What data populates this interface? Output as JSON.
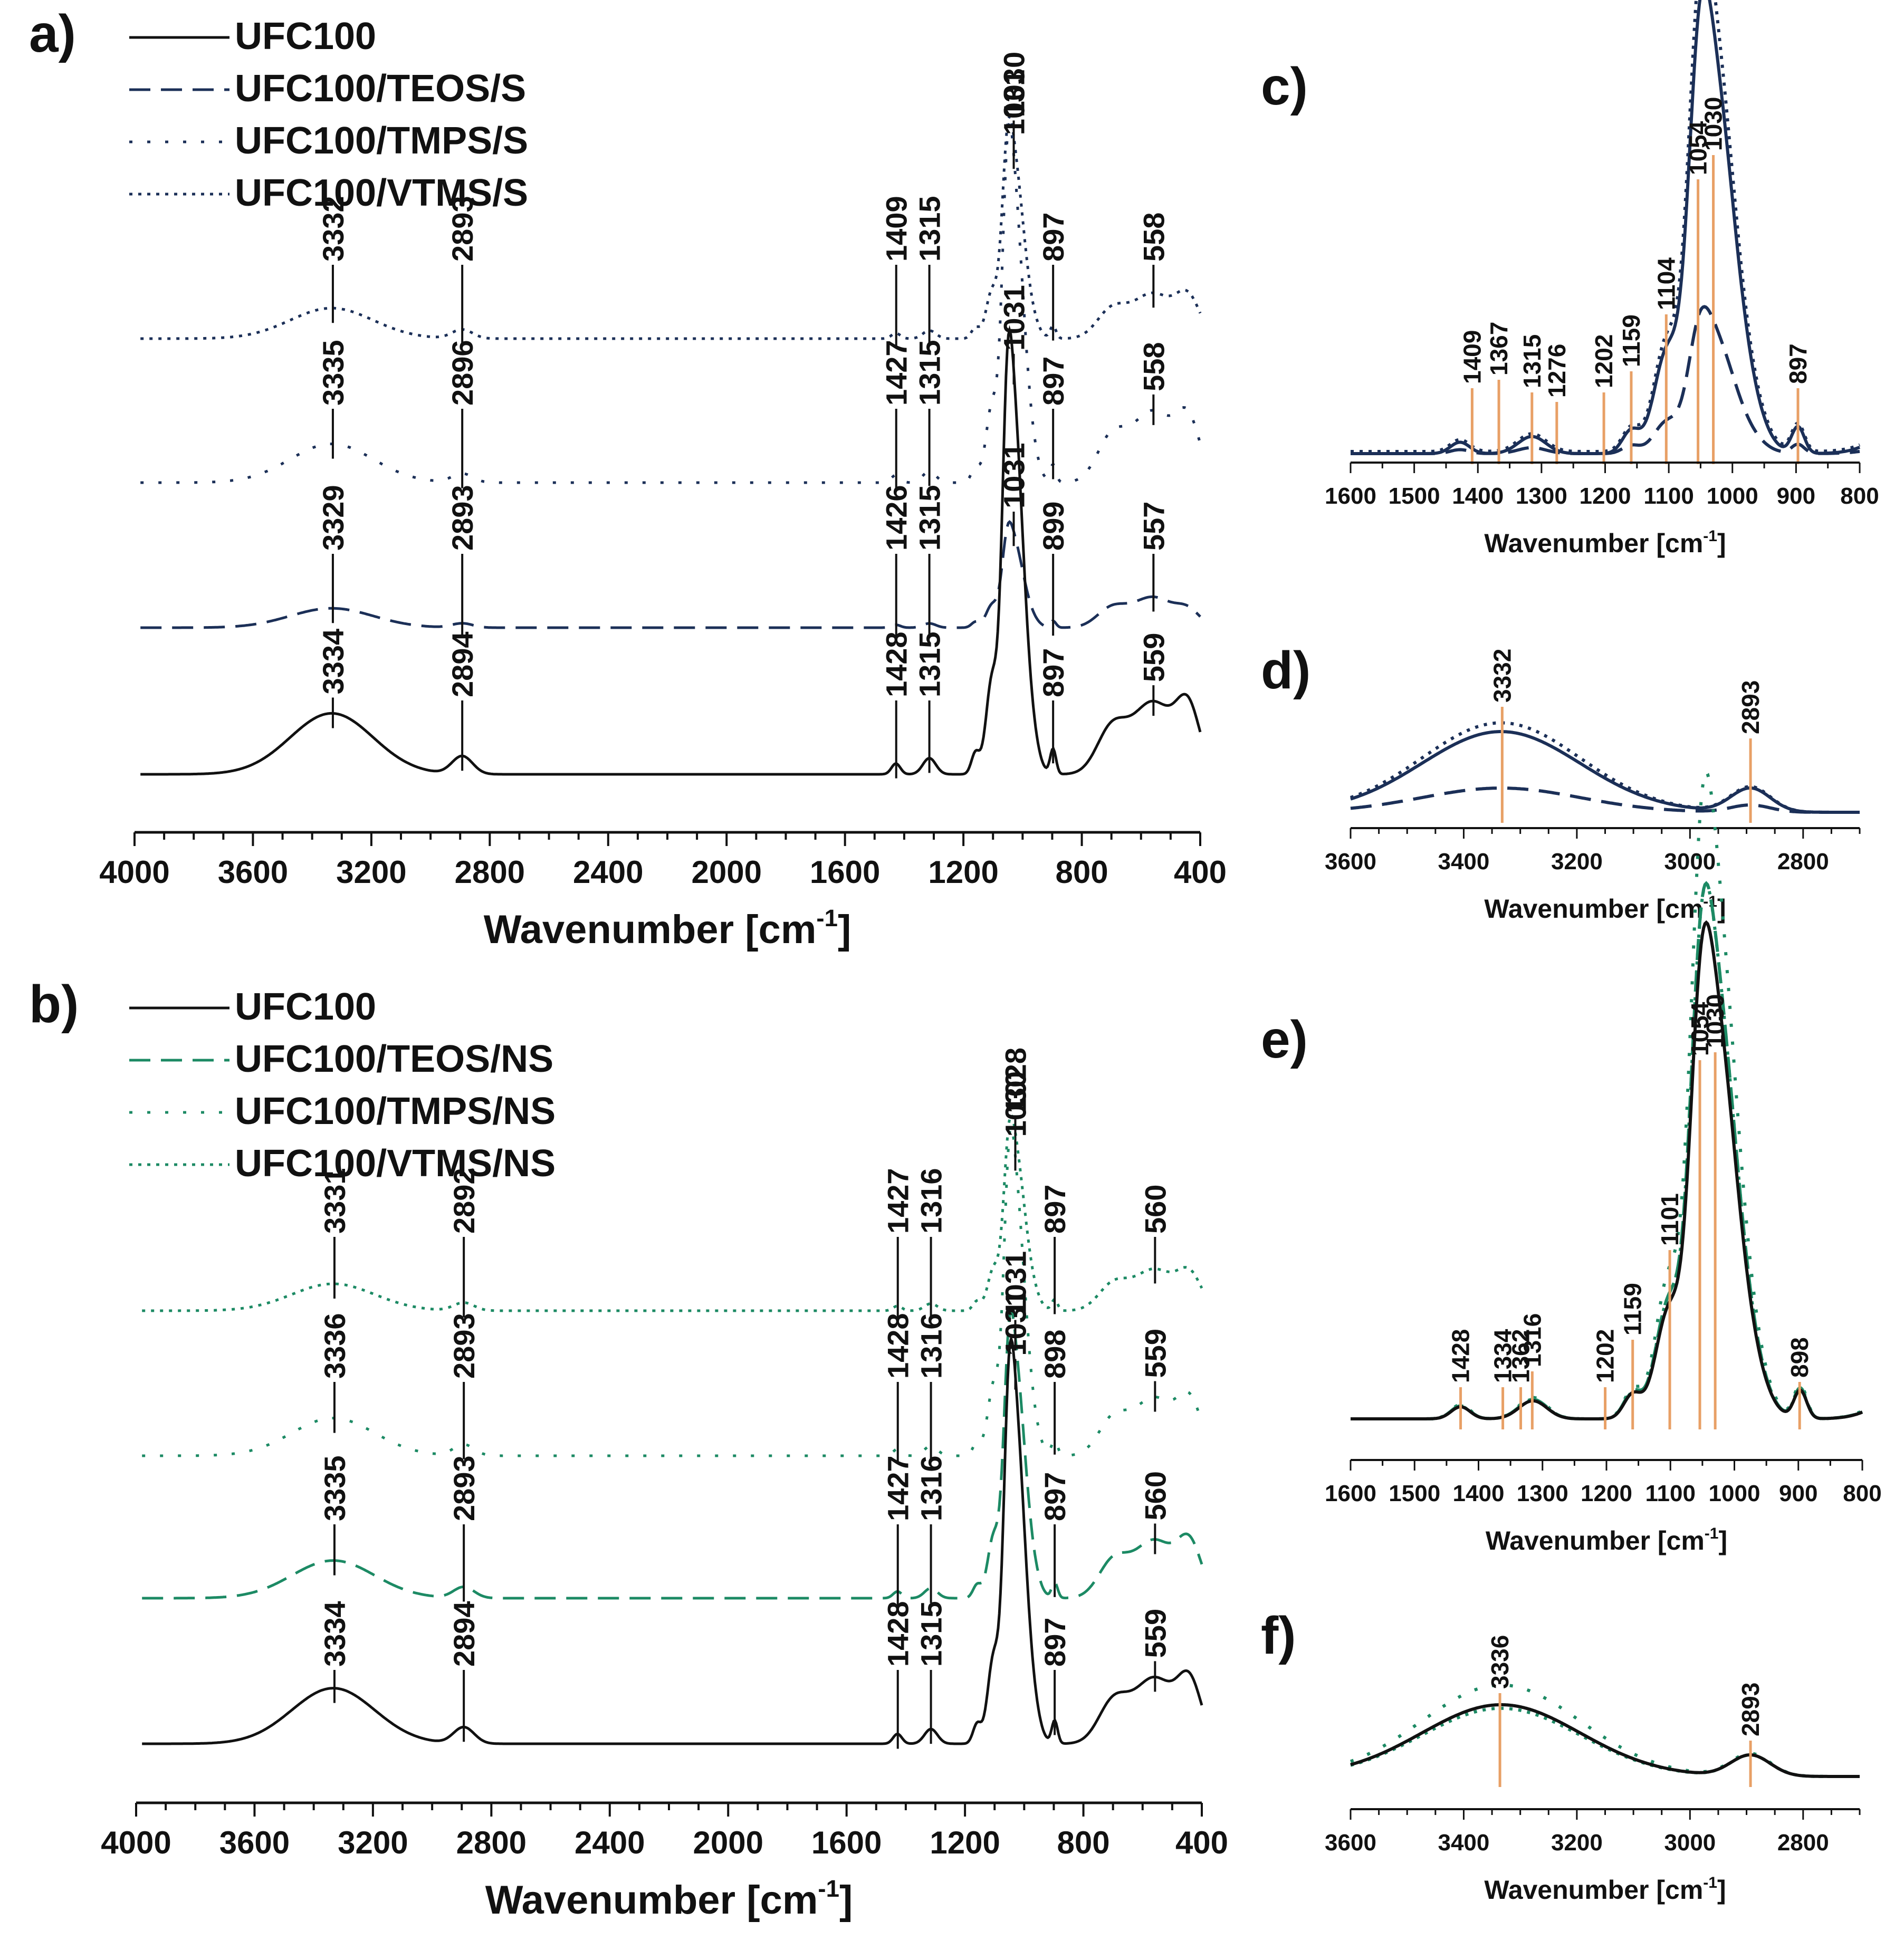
{
  "colors": {
    "black": "#111111",
    "navy": "#1b2f57",
    "green": "#1c8a64",
    "orange": "#e8a066"
  },
  "axis_label": {
    "main": "Wavenumber [cm",
    "sup": "-1",
    "close": "]"
  },
  "chart_data": [
    {
      "panel": "a)",
      "type": "line",
      "xlim": [
        4000,
        400
      ],
      "xticks": [
        "4000",
        "3600",
        "3200",
        "2800",
        "2400",
        "2000",
        "1600",
        "1200",
        "800",
        "400"
      ],
      "legend": [
        {
          "name": "UFC100",
          "style": "solid",
          "color": "#111111"
        },
        {
          "name": "UFC100/TEOS/S",
          "style": "dashed",
          "color": "#1b2f57"
        },
        {
          "name": "UFC100/TMPS/S",
          "style": "dotsparse",
          "color": "#1b2f57"
        },
        {
          "name": "UFC100/VTMS/S",
          "style": "dotted",
          "color": "#1b2f57"
        }
      ],
      "traces": [
        {
          "name": "UFC100/VTMS/S",
          "labels": [
            "3332",
            "2893",
            "1409",
            "1315",
            "1030",
            "897",
            "558"
          ]
        },
        {
          "name": "UFC100/TMPS/S",
          "labels": [
            "3335",
            "2896",
            "1427",
            "1315",
            "1031",
            "897",
            "558"
          ]
        },
        {
          "name": "UFC100/TEOS/S",
          "labels": [
            "3329",
            "2893",
            "1426",
            "1315",
            "1031",
            "899",
            "557"
          ]
        },
        {
          "name": "UFC100",
          "labels": [
            "3334",
            "2894",
            "1428",
            "1315",
            "1031",
            "897",
            "559"
          ]
        }
      ]
    },
    {
      "panel": "b)",
      "type": "line",
      "xlim": [
        4000,
        400
      ],
      "xticks": [
        "4000",
        "3600",
        "3200",
        "2800",
        "2400",
        "2000",
        "1600",
        "1200",
        "800",
        "400"
      ],
      "legend": [
        {
          "name": "UFC100",
          "style": "solid",
          "color": "#111111"
        },
        {
          "name": "UFC100/TEOS/NS",
          "style": "dashed",
          "color": "#1c8a64"
        },
        {
          "name": "UFC100/TMPS/NS",
          "style": "dotsparse",
          "color": "#1c8a64"
        },
        {
          "name": "UFC100/VTMS/NS",
          "style": "dotted",
          "color": "#1c8a64"
        }
      ],
      "traces": [
        {
          "name": "UFC100/VTMS/NS",
          "labels": [
            "3331",
            "2892",
            "1427",
            "1316",
            "1028",
            "897",
            "560"
          ]
        },
        {
          "name": "UFC100/TMPS/NS",
          "labels": [
            "3336",
            "2893",
            "1428",
            "1316",
            "1030",
            "898",
            "559"
          ]
        },
        {
          "name": "UFC100/TEOS/NS",
          "labels": [
            "3335",
            "2893",
            "1427",
            "1316",
            "1031",
            "897",
            "560"
          ]
        },
        {
          "name": "UFC100",
          "labels": [
            "3334",
            "2894",
            "1428",
            "1315",
            "1031",
            "897",
            "559"
          ]
        }
      ]
    },
    {
      "panel": "c)",
      "type": "line",
      "xlim": [
        1600,
        800
      ],
      "xticks": [
        "1600",
        "1500",
        "1400",
        "1300",
        "1200",
        "1100",
        "1000",
        "900",
        "800"
      ],
      "peaks": [
        "1409",
        "1367",
        "1315",
        "1276",
        "1202",
        "1159",
        "1104",
        "1054",
        "1030",
        "897"
      ]
    },
    {
      "panel": "d)",
      "type": "line",
      "xlim": [
        3600,
        2700
      ],
      "xticks": [
        "3600",
        "3400",
        "3200",
        "3000",
        "2800"
      ],
      "peaks": [
        "3332",
        "2893"
      ]
    },
    {
      "panel": "e)",
      "type": "line",
      "xlim": [
        1600,
        800
      ],
      "xticks": [
        "1600",
        "1500",
        "1400",
        "1300",
        "1200",
        "1100",
        "1000",
        "900",
        "800"
      ],
      "peaks": [
        "1428",
        "1334",
        "1362",
        "1316",
        "1202",
        "1159",
        "1101",
        "1054",
        "1030",
        "898"
      ]
    },
    {
      "panel": "f)",
      "type": "line",
      "xlim": [
        3600,
        2700
      ],
      "xticks": [
        "3600",
        "3400",
        "3200",
        "3000",
        "2800"
      ],
      "peaks": [
        "3336",
        "2893"
      ]
    }
  ]
}
